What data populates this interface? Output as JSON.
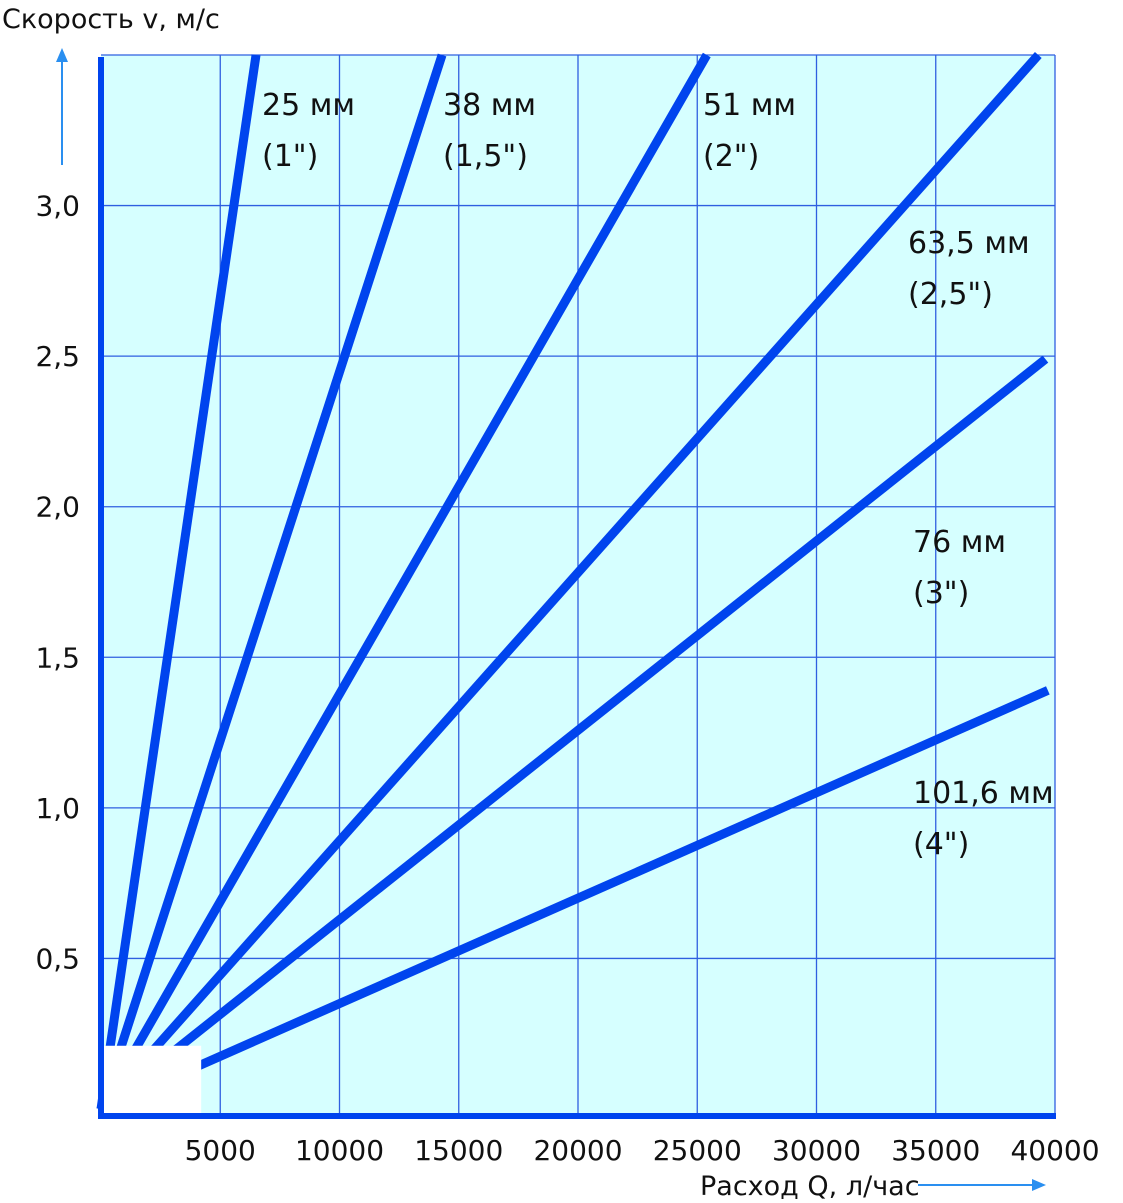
{
  "chart_data": {
    "type": "line",
    "title": "",
    "xlabel": "Расход Q, л/час",
    "ylabel": "Скорость v, м/с",
    "xlim": [
      0,
      40000
    ],
    "ylim": [
      0,
      3.5
    ],
    "grid": true,
    "x_ticks": [
      5000,
      10000,
      15000,
      20000,
      25000,
      30000,
      35000,
      40000
    ],
    "x_tick_labels": [
      "5000",
      "10000",
      "15000",
      "20000",
      "25000",
      "30000",
      "35000",
      "40000"
    ],
    "y_ticks": [
      0.5,
      1.0,
      1.5,
      2.0,
      2.5,
      3.0
    ],
    "y_tick_labels": [
      "0,5",
      "1,0",
      "1,5",
      "2,0",
      "2,5",
      "3,0"
    ],
    "series": [
      {
        "name": "25 мм",
        "sub": "(1\")",
        "points": [
          [
            0,
            0.0
          ],
          [
            6500,
            3.5
          ]
        ]
      },
      {
        "name": "38 мм",
        "sub": "(1,5\")",
        "points": [
          [
            0,
            0.0
          ],
          [
            14300,
            3.5
          ]
        ]
      },
      {
        "name": "51 мм",
        "sub": "(2\")",
        "points": [
          [
            0,
            0.0
          ],
          [
            25400,
            3.5
          ]
        ]
      },
      {
        "name": "63,5 мм",
        "sub": "(2,5\")",
        "points": [
          [
            0,
            0.0
          ],
          [
            39300,
            3.5
          ]
        ]
      },
      {
        "name": "76 мм",
        "sub": "(3\")",
        "points": [
          [
            0,
            0.0
          ],
          [
            39600,
            2.49
          ]
        ]
      },
      {
        "name": "101,6 мм",
        "sub": "(4\")",
        "points": [
          [
            0,
            0.0
          ],
          [
            39700,
            1.39
          ]
        ]
      }
    ],
    "masked_region": {
      "x": [
        0,
        4200
      ],
      "y": [
        0,
        0.21
      ]
    }
  },
  "colors": {
    "plot_bg": "#d6ffff",
    "line": "#0044ee",
    "grid": "#2f5fe0",
    "arrow": "#2a8ff0"
  }
}
